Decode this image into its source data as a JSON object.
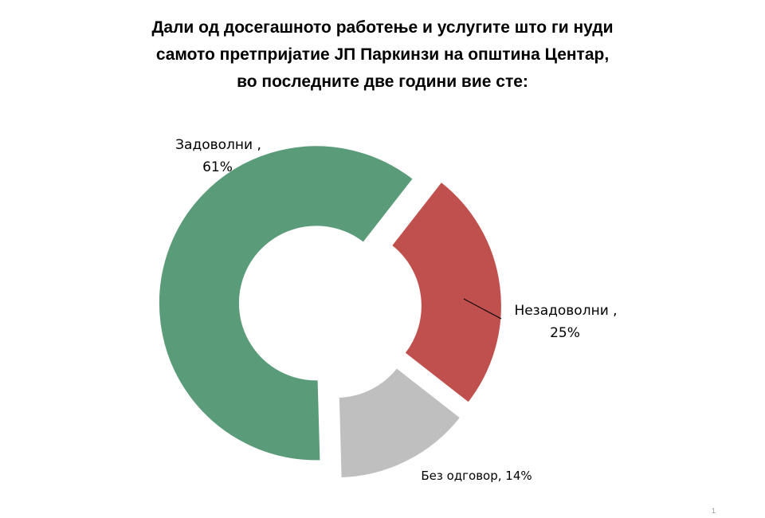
{
  "chart_data": {
    "type": "pie",
    "variant": "donut-exploded",
    "title_lines": [
      "Дали од досегашното работење и услугите што ги нуди",
      "самото претпријатие ЈП Паркинзи на општина Центар,",
      "во последните две години вие сте:"
    ],
    "slices": [
      {
        "category": "Незадоволни",
        "value": 25,
        "label_line1": "Незадоволни ,",
        "label_line2": "25%",
        "color": "#c0504d"
      },
      {
        "category": "Без одговор",
        "value": 14,
        "label_line1": "Без одговор, 14%",
        "label_line2": "",
        "color": "#bfbfbf"
      },
      {
        "category": "Задоволни",
        "value": 61,
        "label_line1": "Задоволни ,",
        "label_line2": "61%",
        "color": "#5a9c79"
      }
    ],
    "legend": "none",
    "data_labels": "category, percent"
  },
  "page_number": "1"
}
